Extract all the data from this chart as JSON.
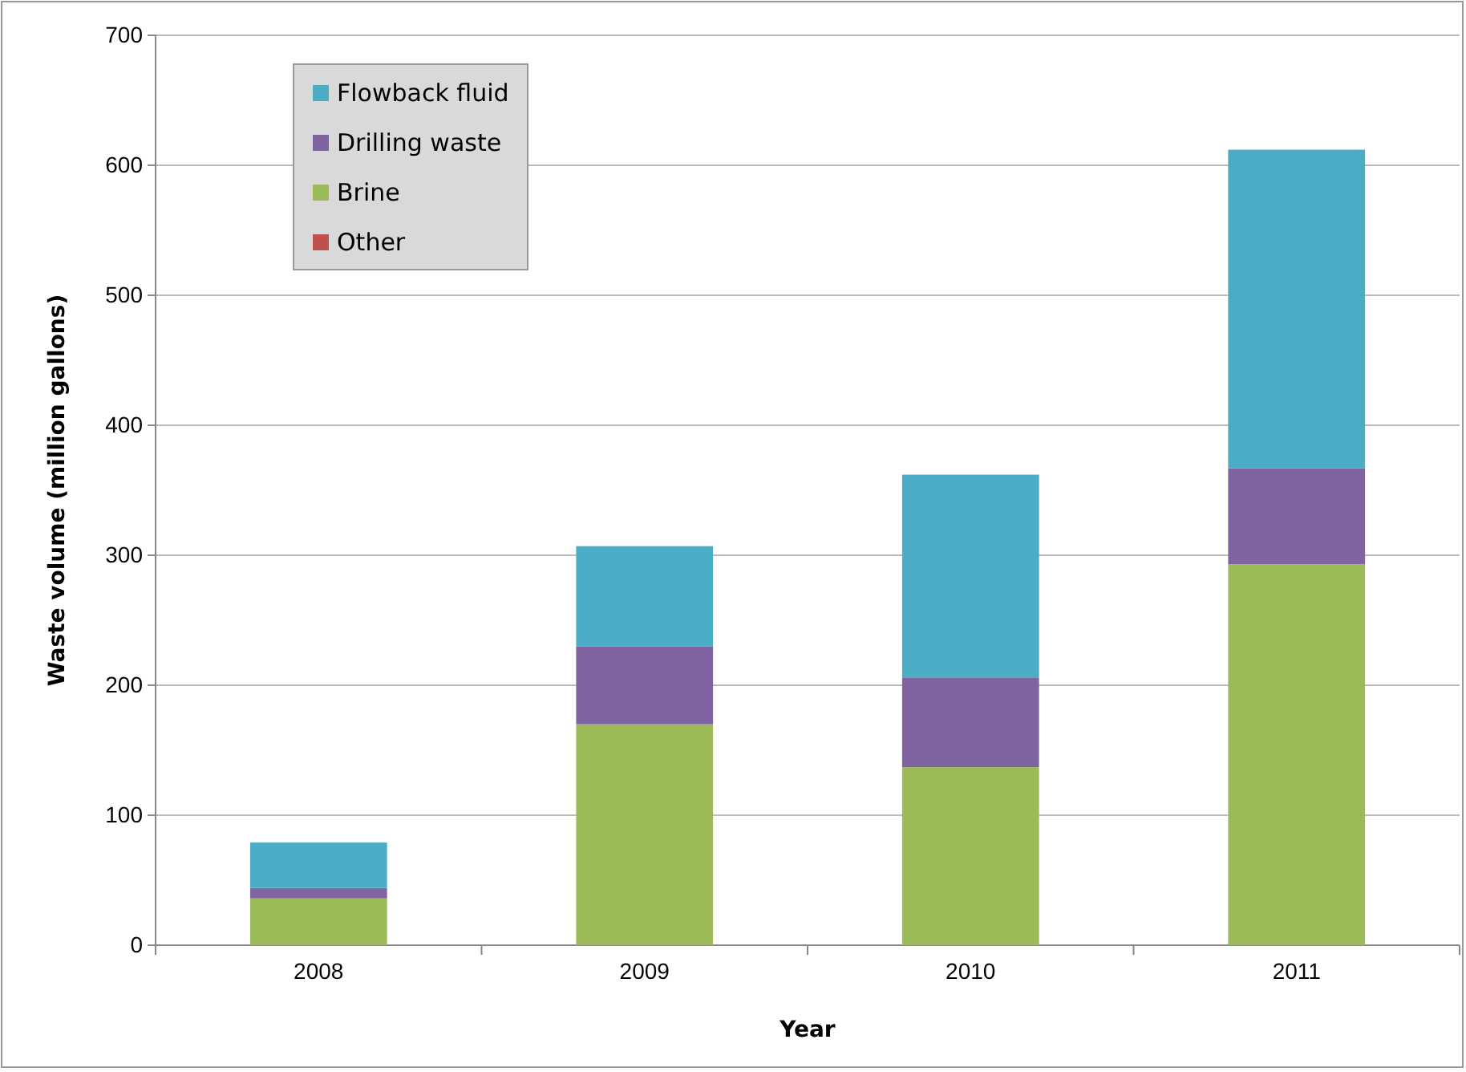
{
  "chart_data": {
    "type": "bar",
    "stacked": true,
    "xlabel": "Year",
    "ylabel": "Waste volume (million gallons)",
    "categories": [
      "2008",
      "2009",
      "2010",
      "2011"
    ],
    "series": [
      {
        "name": "Other",
        "color": "#c0504d",
        "values": [
          0,
          0,
          0,
          0
        ]
      },
      {
        "name": "Brine",
        "color": "#9bbb59",
        "values": [
          36,
          170,
          137,
          293
        ]
      },
      {
        "name": "Drilling waste",
        "color": "#8064a2",
        "values": [
          8,
          60,
          69,
          74
        ]
      },
      {
        "name": "Flowback fluid",
        "color": "#4bacc6",
        "values": [
          35,
          77,
          156,
          245
        ]
      }
    ],
    "ylim": [
      0,
      700
    ],
    "yticks": [
      0,
      100,
      200,
      300,
      400,
      500,
      600,
      700
    ],
    "grid": "y",
    "legend": "top left"
  }
}
